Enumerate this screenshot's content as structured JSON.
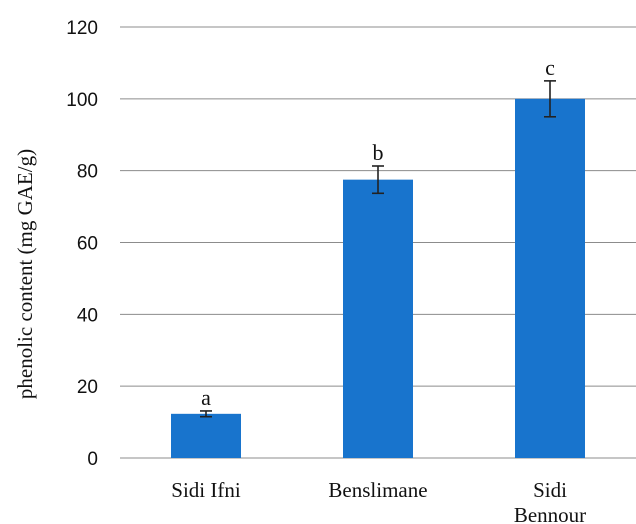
{
  "chart_data": {
    "type": "bar",
    "categories": [
      [
        "Sidi Ifni"
      ],
      [
        "Benslimane"
      ],
      [
        "Sidi",
        "Bennour"
      ]
    ],
    "values": [
      12.3,
      77.5,
      100
    ],
    "errors": [
      0.8,
      3.8,
      5.0
    ],
    "significance_labels": [
      "a",
      "b",
      "c"
    ],
    "ylabel": "phenolic content (mg GAE/g)",
    "ylim": [
      0,
      120
    ],
    "yticks": [
      0,
      20,
      40,
      60,
      80,
      100,
      120
    ],
    "grid": true,
    "bar_color": "#1874CD"
  }
}
